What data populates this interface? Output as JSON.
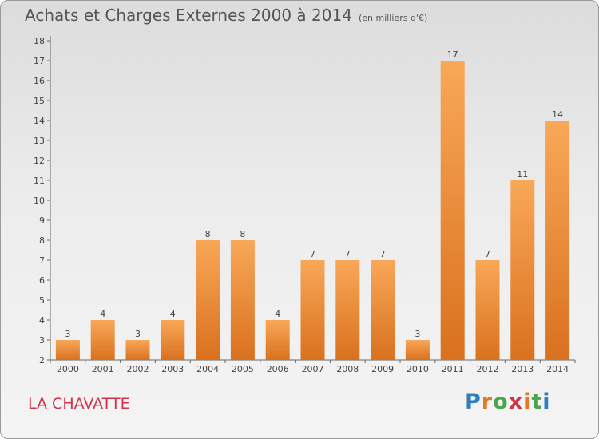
{
  "title": "Achats et Charges Externes 2000 à 2014",
  "unit": "(en milliers d'€)",
  "commune": "LA CHAVATTE",
  "brand": {
    "text": "Proxiti",
    "letter_colors": [
      "#2d7fc1",
      "#e07b21",
      "#4aa64a",
      "#d1334a",
      "#e07b21",
      "#4aa64a",
      "#2d7fc1"
    ]
  },
  "colors": {
    "bar_light": "#f8a858",
    "bar_dark": "#d9711e",
    "axis": "#666666"
  },
  "chart_data": {
    "type": "bar",
    "title": "Achats et Charges Externes 2000 à 2014",
    "categories": [
      "2000",
      "2001",
      "2002",
      "2003",
      "2004",
      "2005",
      "2006",
      "2007",
      "2008",
      "2009",
      "2010",
      "2011",
      "2012",
      "2013",
      "2014"
    ],
    "values": [
      3,
      4,
      3,
      4,
      8,
      8,
      4,
      7,
      7,
      7,
      3,
      17,
      7,
      11,
      14
    ],
    "ylim": [
      2,
      18
    ],
    "yticks": [
      2,
      3,
      4,
      5,
      6,
      7,
      8,
      9,
      10,
      11,
      12,
      13,
      14,
      15,
      16,
      17,
      18
    ],
    "grid": false,
    "xlabel": "",
    "ylabel": ""
  }
}
